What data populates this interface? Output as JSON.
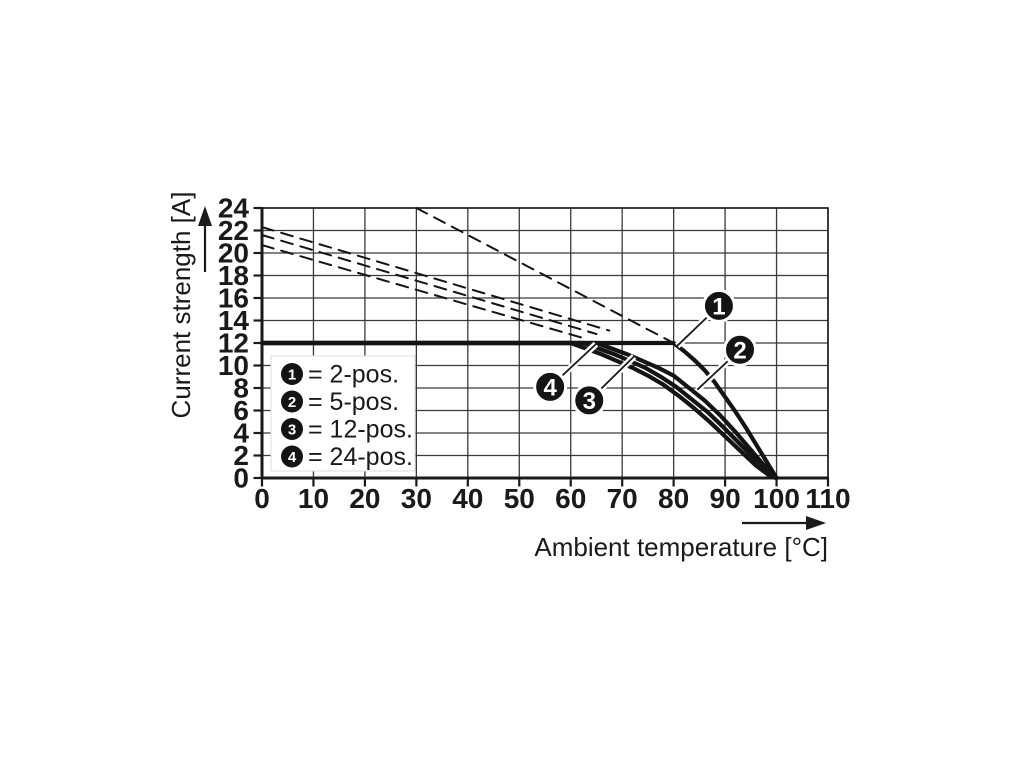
{
  "figure": {
    "kind": "derating-curve-figure"
  },
  "chart_data": {
    "type": "line",
    "title": "",
    "xlabel": "Ambient temperature [°C]",
    "ylabel": "Current strength [A]",
    "xlim": [
      0,
      110
    ],
    "ylim": [
      0,
      24
    ],
    "x_ticks": [
      0,
      10,
      20,
      30,
      40,
      50,
      60,
      70,
      80,
      90,
      100,
      110
    ],
    "y_ticks": [
      0,
      2,
      4,
      6,
      8,
      10,
      12,
      14,
      16,
      18,
      20,
      22,
      24
    ],
    "grid": true,
    "current_limit_A": 12,
    "series": [
      {
        "name": "2-pos. limit curve",
        "callout": "1",
        "style": "solid",
        "points": [
          [
            0,
            12
          ],
          [
            80,
            12
          ],
          [
            82,
            11.3
          ],
          [
            84,
            10.5
          ],
          [
            86,
            9.6
          ],
          [
            88,
            8.5
          ],
          [
            90,
            7.2
          ],
          [
            92,
            5.9
          ],
          [
            94,
            4.5
          ],
          [
            96,
            3.0
          ],
          [
            98,
            1.5
          ],
          [
            100,
            0
          ]
        ]
      },
      {
        "name": "5-pos. limit curve",
        "callout": "2",
        "style": "solid",
        "points": [
          [
            0,
            12
          ],
          [
            65,
            12
          ],
          [
            68,
            11.5
          ],
          [
            71,
            11.0
          ],
          [
            74,
            10.4
          ],
          [
            77,
            9.8
          ],
          [
            80,
            9.1
          ],
          [
            83,
            8.0
          ],
          [
            86,
            6.9
          ],
          [
            89,
            5.6
          ],
          [
            92,
            4.1
          ],
          [
            95,
            2.5
          ],
          [
            98,
            0.9
          ],
          [
            100,
            0
          ]
        ]
      },
      {
        "name": "12-pos. limit curve",
        "callout": "3",
        "style": "solid",
        "points": [
          [
            0,
            12
          ],
          [
            62.5,
            12
          ],
          [
            65.5,
            11.5
          ],
          [
            68.5,
            11.0
          ],
          [
            71.5,
            10.4
          ],
          [
            74.5,
            9.8
          ],
          [
            77.5,
            9.0
          ],
          [
            80.5,
            8.1
          ],
          [
            83.5,
            7.0
          ],
          [
            86.5,
            5.9
          ],
          [
            89.5,
            4.6
          ],
          [
            92.5,
            3.2
          ],
          [
            95.5,
            1.8
          ],
          [
            98,
            0.7
          ],
          [
            100,
            0
          ]
        ]
      },
      {
        "name": "24-pos. limit curve",
        "callout": "4",
        "style": "solid",
        "points": [
          [
            0,
            12
          ],
          [
            60,
            12
          ],
          [
            63,
            11.5
          ],
          [
            66,
            11.0
          ],
          [
            69,
            10.4
          ],
          [
            72,
            9.8
          ],
          [
            75,
            9.1
          ],
          [
            78,
            8.3
          ],
          [
            81,
            7.3
          ],
          [
            84,
            6.2
          ],
          [
            87,
            5.0
          ],
          [
            90,
            3.7
          ],
          [
            93,
            2.4
          ],
          [
            96,
            1.1
          ],
          [
            99,
            0.1
          ],
          [
            100,
            0
          ]
        ]
      },
      {
        "name": "2-pos. unrestricted line",
        "style": "dashed",
        "points": [
          [
            30,
            24
          ],
          [
            80,
            12
          ]
        ]
      },
      {
        "name": "5-pos. unrestricted line",
        "style": "dashed",
        "points": [
          [
            0,
            22.3
          ],
          [
            67.5,
            13.1
          ]
        ]
      },
      {
        "name": "12-pos. unrestricted line",
        "style": "dashed",
        "points": [
          [
            0,
            21.6
          ],
          [
            65,
            12.8
          ]
        ]
      },
      {
        "name": "24-pos. unrestricted line",
        "style": "dashed",
        "points": [
          [
            0,
            20.7
          ],
          [
            62,
            12.5
          ]
        ]
      }
    ],
    "legend_position": "lower-left-inside",
    "legend": [
      {
        "symbol": "1",
        "label": "= 2-pos."
      },
      {
        "symbol": "2",
        "label": "= 5-pos."
      },
      {
        "symbol": "3",
        "label": "= 12-pos."
      },
      {
        "symbol": "4",
        "label": "= 24-pos."
      }
    ],
    "callouts": [
      {
        "symbol": "1",
        "balloon_xy": [
          88.8,
          15.3
        ],
        "target_xy": [
          80.7,
          11.75
        ]
      },
      {
        "symbol": "2",
        "balloon_xy": [
          92.9,
          11.4
        ],
        "target_xy": [
          84.6,
          7.85
        ]
      },
      {
        "symbol": "3",
        "balloon_xy": [
          63.6,
          6.9
        ],
        "target_xy": [
          72.3,
          10.8
        ]
      },
      {
        "symbol": "4",
        "balloon_xy": [
          56.0,
          8.1
        ],
        "target_xy": [
          64.9,
          11.9
        ]
      }
    ]
  },
  "colors": {
    "ink": "#1a1a1a",
    "curve": "#141414",
    "grid": "#3a3a3a",
    "background": "#ffffff",
    "legend_border": "#dcdcdc",
    "balloon_fill": "#141414",
    "balloon_text": "#ffffff"
  }
}
